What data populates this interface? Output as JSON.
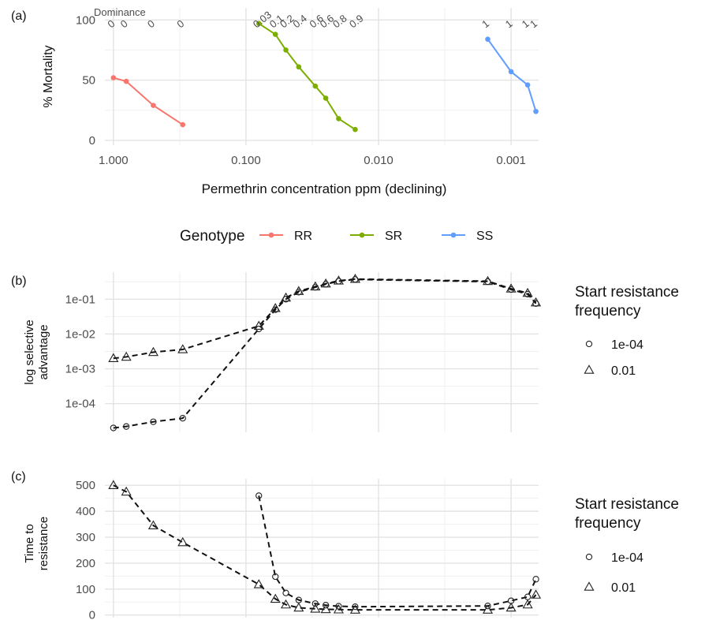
{
  "chart_data": [
    {
      "panel": "(a)",
      "type": "line",
      "xlabel": "Permethrin concentration ppm (declining)",
      "ylabel": "% Mortality",
      "x_scale": "log10-reversed",
      "x_ticks": [
        1,
        0.1,
        0.01,
        0.001
      ],
      "x_tick_labels": [
        "1.000",
        "0.100",
        "0.010",
        "0.001"
      ],
      "xlim": [
        1.16,
        0.00062
      ],
      "y_ticks": [
        0,
        50,
        100
      ],
      "y_tick_labels": [
        "0",
        "50",
        "100"
      ],
      "ylim": [
        -4,
        110
      ],
      "grid": true,
      "dominance_title": "Dominance",
      "legend": {
        "title": "Genotype",
        "position": "bottom"
      },
      "series": [
        {
          "name": "RR",
          "color": "#F8766D",
          "x": [
            1.0,
            0.8,
            0.5,
            0.3
          ],
          "y": [
            52,
            49,
            29,
            13
          ],
          "dominance": [
            "0",
            "0",
            "0",
            "0"
          ]
        },
        {
          "name": "SR",
          "color": "#7CAE00",
          "x": [
            0.08,
            0.06,
            0.05,
            0.04,
            0.03,
            0.025,
            0.02,
            0.015
          ],
          "y": [
            97,
            88,
            75,
            61,
            45,
            35,
            18,
            9
          ],
          "dominance": [
            "0.03",
            "0.1",
            "0.2",
            "0.4",
            "0.6",
            "0.6",
            "0.8",
            "0.9"
          ]
        },
        {
          "name": "SS",
          "color": "#619CFF",
          "x": [
            0.0015,
            0.001,
            0.00075,
            0.00065
          ],
          "y": [
            84,
            57,
            46,
            24
          ],
          "dominance": [
            "1",
            "1",
            "1",
            "1"
          ]
        }
      ]
    },
    {
      "panel": "(b)",
      "type": "line",
      "ylabel": "log selective advantage",
      "y_scale": "log10",
      "y_ticks": [
        0.0001,
        0.001,
        0.01,
        0.1
      ],
      "y_tick_labels": [
        "1e-04",
        "1e-03",
        "1e-02",
        "1e-01"
      ],
      "ylim": [
        1.5e-05,
        0.6
      ],
      "legend": {
        "title": "Start resistance frequency",
        "position": "right"
      },
      "series": [
        {
          "name": "1e-04",
          "marker": "circle",
          "x": [
            1.0,
            0.8,
            0.5,
            0.3,
            0.08,
            0.06,
            0.05,
            0.04,
            0.03,
            0.025,
            0.02,
            0.015,
            0.0015,
            0.001,
            0.00075,
            0.00065
          ],
          "y": [
            2e-05,
            2.2e-05,
            3e-05,
            3.8e-05,
            0.014,
            0.05,
            0.1,
            0.16,
            0.22,
            0.27,
            0.33,
            0.37,
            0.32,
            0.19,
            0.14,
            0.075
          ]
        },
        {
          "name": "0.01",
          "marker": "triangle",
          "x": [
            1.0,
            0.8,
            0.5,
            0.3,
            0.08,
            0.06,
            0.05,
            0.04,
            0.03,
            0.025,
            0.02,
            0.015,
            0.0015,
            0.001,
            0.00075,
            0.00065
          ],
          "y": [
            0.002,
            0.0022,
            0.003,
            0.0036,
            0.017,
            0.055,
            0.11,
            0.17,
            0.23,
            0.28,
            0.34,
            0.38,
            0.33,
            0.2,
            0.15,
            0.08
          ]
        }
      ]
    },
    {
      "panel": "(c)",
      "type": "line",
      "ylabel": "Time to resistance",
      "y_ticks": [
        0,
        100,
        200,
        300,
        400,
        500
      ],
      "y_tick_labels": [
        "0",
        "100",
        "200",
        "300",
        "400",
        "500"
      ],
      "ylim": [
        -10,
        525
      ],
      "legend": {
        "title": "Start resistance frequency",
        "position": "right"
      },
      "series": [
        {
          "name": "1e-04",
          "marker": "circle",
          "x": [
            0.08,
            0.06,
            0.05,
            0.04,
            0.03,
            0.025,
            0.02,
            0.015,
            0.0015,
            0.001,
            0.00075,
            0.00065
          ],
          "y": [
            460,
            148,
            85,
            58,
            44,
            38,
            34,
            32,
            35,
            55,
            70,
            138
          ]
        },
        {
          "name": "0.01",
          "marker": "triangle",
          "x": [
            1.0,
            0.8,
            0.5,
            0.3,
            0.08,
            0.06,
            0.05,
            0.04,
            0.03,
            0.025,
            0.02,
            0.015,
            0.0015,
            0.001,
            0.00075,
            0.00065
          ],
          "y": [
            500,
            475,
            345,
            280,
            118,
            62,
            40,
            28,
            24,
            22,
            21,
            20,
            20,
            28,
            40,
            78
          ]
        }
      ]
    }
  ]
}
